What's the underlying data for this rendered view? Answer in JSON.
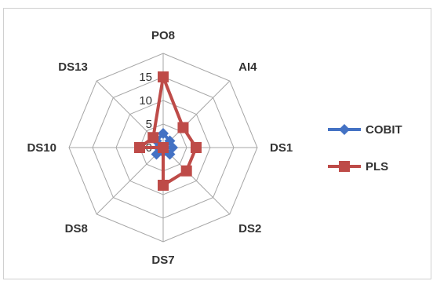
{
  "chart_data": {
    "type": "radar",
    "categories": [
      "PO8",
      "AI4",
      "DS1",
      "DS2",
      "DS7",
      "DS8",
      "DS10",
      "DS13"
    ],
    "r_ticks": [
      0,
      5,
      10,
      15
    ],
    "r_max": 15,
    "series": [
      {
        "name": "COBIT",
        "values": [
          3,
          2,
          2,
          2,
          1,
          2,
          1,
          2
        ],
        "color": "#4472c4",
        "marker": "diamond"
      },
      {
        "name": "PLS",
        "values": [
          15,
          6,
          7,
          7,
          8,
          0,
          5,
          3
        ],
        "color": "#be4b48",
        "marker": "square"
      }
    ],
    "legend": "right"
  }
}
